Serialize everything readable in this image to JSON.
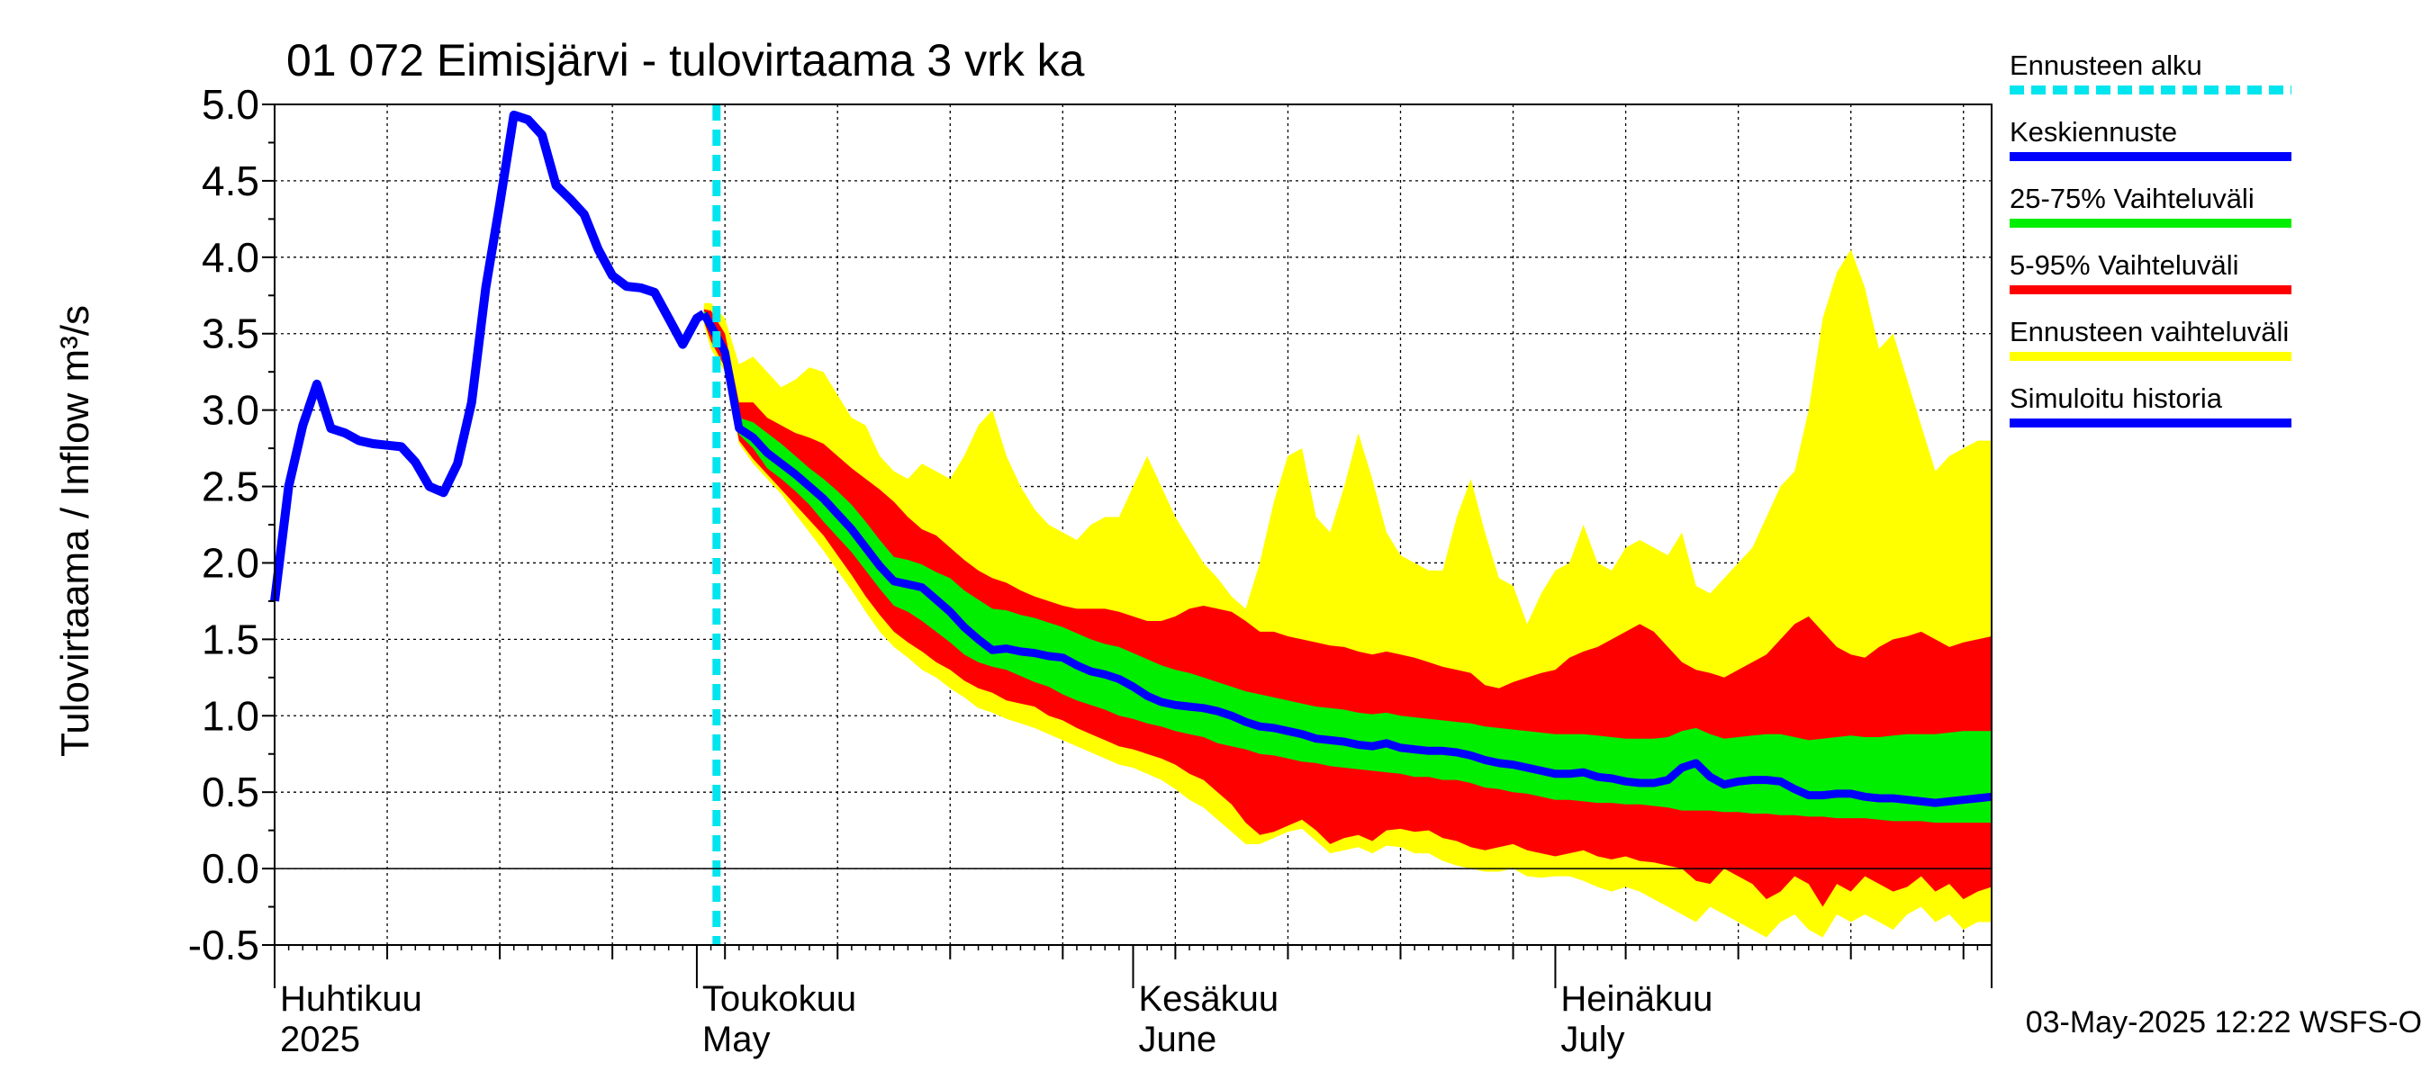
{
  "chart_data": {
    "type": "area",
    "title": "01 072 Eimisjärvi - tulovirtaama 3 vrk ka",
    "ylabel": "Tulovirtaama / Inflow    m³/s",
    "ylim": [
      -0.5,
      5.0
    ],
    "yticks": [
      "5.0",
      "4.5",
      "4.0",
      "3.5",
      "3.0",
      "2.5",
      "2.0",
      "1.5",
      "1.0",
      "0.5",
      "0.0",
      "-0.5"
    ],
    "x_range_days": [
      0,
      122
    ],
    "month_labels": [
      {
        "day": 0,
        "fi": "Huhtikuu",
        "en": "2025"
      },
      {
        "day": 30,
        "fi": "Toukokuu",
        "en": "May"
      },
      {
        "day": 61,
        "fi": "Kesäkuu",
        "en": "June"
      },
      {
        "day": 91,
        "fi": "Heinäkuu",
        "en": "July"
      }
    ],
    "forecast_start_day": 31.4,
    "footer": "03-May-2025 12:22 WSFS-O",
    "legend": [
      {
        "label": "Ennusteen alku",
        "color": "#00e5ee",
        "style": "dashed"
      },
      {
        "label": "Keskiennuste",
        "color": "#0000ff",
        "style": "solid"
      },
      {
        "label": "25-75% Vaihteluväli",
        "color": "#00ee00",
        "style": "solid"
      },
      {
        "label": "5-95% Vaihteluväli",
        "color": "#ff0000",
        "style": "solid"
      },
      {
        "label": "Ennusteen vaihteluväli",
        "color": "#ffff00",
        "style": "solid"
      },
      {
        "label": "Simuloitu historia",
        "color": "#0000ff",
        "style": "solid"
      }
    ],
    "colors": {
      "yellow": "#ffff00",
      "red": "#ff0000",
      "green": "#00ee00",
      "blue": "#0000ff",
      "cyan": "#00e5ee"
    },
    "history": [
      [
        0,
        1.75
      ],
      [
        1,
        2.5
      ],
      [
        2,
        2.9
      ],
      [
        3,
        3.17
      ],
      [
        4,
        2.88
      ],
      [
        5,
        2.85
      ],
      [
        6,
        2.8
      ],
      [
        7,
        2.78
      ],
      [
        8,
        2.77
      ],
      [
        9,
        2.76
      ],
      [
        10,
        2.66
      ],
      [
        11,
        2.5
      ],
      [
        12,
        2.46
      ],
      [
        13,
        2.65
      ],
      [
        14,
        3.05
      ],
      [
        15,
        3.8
      ],
      [
        16,
        4.35
      ],
      [
        17,
        4.93
      ],
      [
        18,
        4.9
      ],
      [
        19,
        4.8
      ],
      [
        20,
        4.47
      ],
      [
        21,
        4.38
      ],
      [
        22,
        4.28
      ],
      [
        23,
        4.05
      ],
      [
        24,
        3.88
      ],
      [
        25,
        3.81
      ],
      [
        26,
        3.8
      ],
      [
        27,
        3.77
      ],
      [
        28,
        3.6
      ],
      [
        29,
        3.43
      ],
      [
        30,
        3.6
      ],
      [
        30.5,
        3.63
      ]
    ],
    "forecast_days": [
      30.5,
      31,
      32,
      33,
      34,
      35,
      36,
      37,
      38,
      39,
      40,
      41,
      42,
      43,
      44,
      45,
      46,
      47,
      48,
      49,
      50,
      51,
      52,
      53,
      54,
      55,
      56,
      57,
      58,
      59,
      60,
      61,
      62,
      63,
      64,
      65,
      66,
      67,
      68,
      69,
      70,
      71,
      72,
      73,
      74,
      75,
      76,
      77,
      78,
      79,
      80,
      81,
      82,
      83,
      84,
      85,
      86,
      87,
      88,
      89,
      90,
      91,
      92,
      93,
      94,
      95,
      96,
      97,
      98,
      99,
      100,
      101,
      102,
      103,
      104,
      105,
      106,
      107,
      108,
      109,
      110,
      111,
      112,
      113,
      114,
      115,
      116,
      117,
      118,
      119,
      120,
      121,
      122
    ],
    "forecast_mean": [
      3.63,
      3.55,
      3.38,
      2.88,
      2.82,
      2.72,
      2.65,
      2.58,
      2.5,
      2.42,
      2.32,
      2.22,
      2.1,
      1.98,
      1.88,
      1.86,
      1.84,
      1.76,
      1.68,
      1.58,
      1.5,
      1.43,
      1.44,
      1.42,
      1.41,
      1.39,
      1.38,
      1.33,
      1.29,
      1.27,
      1.24,
      1.19,
      1.13,
      1.09,
      1.07,
      1.06,
      1.05,
      1.03,
      1.0,
      0.96,
      0.93,
      0.92,
      0.9,
      0.88,
      0.85,
      0.84,
      0.83,
      0.81,
      0.8,
      0.82,
      0.79,
      0.78,
      0.77,
      0.77,
      0.76,
      0.74,
      0.71,
      0.69,
      0.68,
      0.66,
      0.64,
      0.62,
      0.62,
      0.63,
      0.6,
      0.59,
      0.57,
      0.56,
      0.56,
      0.58,
      0.66,
      0.69,
      0.6,
      0.55,
      0.57,
      0.58,
      0.58,
      0.57,
      0.52,
      0.48,
      0.48,
      0.49,
      0.49,
      0.47,
      0.46,
      0.46,
      0.45,
      0.44,
      0.43,
      0.44,
      0.45,
      0.46,
      0.47
    ],
    "p25": [
      3.6,
      3.5,
      3.33,
      2.84,
      2.75,
      2.62,
      2.55,
      2.47,
      2.38,
      2.27,
      2.17,
      2.07,
      1.95,
      1.83,
      1.72,
      1.68,
      1.62,
      1.55,
      1.48,
      1.4,
      1.35,
      1.32,
      1.3,
      1.26,
      1.22,
      1.19,
      1.14,
      1.1,
      1.07,
      1.04,
      1.0,
      0.98,
      0.95,
      0.93,
      0.9,
      0.88,
      0.86,
      0.82,
      0.8,
      0.78,
      0.75,
      0.74,
      0.72,
      0.7,
      0.69,
      0.67,
      0.66,
      0.65,
      0.64,
      0.63,
      0.62,
      0.6,
      0.6,
      0.58,
      0.58,
      0.56,
      0.53,
      0.52,
      0.5,
      0.49,
      0.47,
      0.45,
      0.45,
      0.44,
      0.43,
      0.43,
      0.42,
      0.42,
      0.41,
      0.4,
      0.38,
      0.38,
      0.38,
      0.37,
      0.37,
      0.36,
      0.36,
      0.35,
      0.35,
      0.34,
      0.34,
      0.33,
      0.33,
      0.33,
      0.32,
      0.31,
      0.31,
      0.31,
      0.3,
      0.3,
      0.3,
      0.3,
      0.3
    ],
    "p75": [
      3.65,
      3.6,
      3.43,
      2.95,
      2.92,
      2.85,
      2.78,
      2.7,
      2.62,
      2.55,
      2.47,
      2.38,
      2.27,
      2.15,
      2.04,
      2.02,
      1.99,
      1.94,
      1.9,
      1.82,
      1.76,
      1.7,
      1.69,
      1.66,
      1.64,
      1.61,
      1.58,
      1.54,
      1.5,
      1.47,
      1.45,
      1.41,
      1.37,
      1.33,
      1.3,
      1.28,
      1.25,
      1.22,
      1.19,
      1.16,
      1.14,
      1.12,
      1.1,
      1.08,
      1.06,
      1.05,
      1.04,
      1.02,
      1.01,
      1.02,
      1.0,
      0.99,
      0.98,
      0.97,
      0.96,
      0.95,
      0.93,
      0.92,
      0.91,
      0.9,
      0.89,
      0.88,
      0.88,
      0.88,
      0.87,
      0.86,
      0.85,
      0.85,
      0.85,
      0.86,
      0.9,
      0.92,
      0.88,
      0.85,
      0.86,
      0.87,
      0.88,
      0.88,
      0.86,
      0.84,
      0.85,
      0.86,
      0.87,
      0.86,
      0.86,
      0.87,
      0.88,
      0.88,
      0.88,
      0.89,
      0.9,
      0.9,
      0.9
    ],
    "p5": [
      3.58,
      3.45,
      3.28,
      2.8,
      2.68,
      2.58,
      2.48,
      2.38,
      2.28,
      2.18,
      2.05,
      1.92,
      1.78,
      1.66,
      1.55,
      1.48,
      1.42,
      1.35,
      1.3,
      1.23,
      1.18,
      1.15,
      1.1,
      1.08,
      1.06,
      1.0,
      0.97,
      0.92,
      0.88,
      0.84,
      0.8,
      0.78,
      0.75,
      0.72,
      0.68,
      0.62,
      0.58,
      0.5,
      0.42,
      0.3,
      0.22,
      0.24,
      0.28,
      0.32,
      0.25,
      0.16,
      0.2,
      0.22,
      0.18,
      0.25,
      0.26,
      0.24,
      0.25,
      0.2,
      0.18,
      0.14,
      0.12,
      0.14,
      0.16,
      0.12,
      0.1,
      0.08,
      0.1,
      0.12,
      0.08,
      0.06,
      0.08,
      0.05,
      0.04,
      0.02,
      0.0,
      -0.08,
      -0.1,
      0.0,
      -0.05,
      -0.1,
      -0.2,
      -0.15,
      -0.05,
      -0.1,
      -0.25,
      -0.1,
      -0.15,
      -0.05,
      -0.1,
      -0.15,
      -0.12,
      -0.05,
      -0.15,
      -0.1,
      -0.2,
      -0.15,
      -0.12
    ],
    "p95": [
      3.66,
      3.65,
      3.5,
      3.05,
      3.05,
      2.95,
      2.9,
      2.85,
      2.82,
      2.78,
      2.7,
      2.62,
      2.55,
      2.48,
      2.4,
      2.3,
      2.22,
      2.18,
      2.1,
      2.02,
      1.95,
      1.9,
      1.87,
      1.82,
      1.78,
      1.75,
      1.72,
      1.7,
      1.7,
      1.7,
      1.68,
      1.65,
      1.62,
      1.62,
      1.65,
      1.7,
      1.72,
      1.7,
      1.68,
      1.62,
      1.55,
      1.55,
      1.52,
      1.5,
      1.48,
      1.46,
      1.45,
      1.42,
      1.4,
      1.42,
      1.4,
      1.38,
      1.35,
      1.32,
      1.3,
      1.28,
      1.2,
      1.18,
      1.22,
      1.25,
      1.28,
      1.3,
      1.38,
      1.42,
      1.45,
      1.5,
      1.55,
      1.6,
      1.55,
      1.45,
      1.35,
      1.3,
      1.28,
      1.25,
      1.3,
      1.35,
      1.4,
      1.5,
      1.6,
      1.65,
      1.55,
      1.45,
      1.4,
      1.38,
      1.45,
      1.5,
      1.52,
      1.55,
      1.5,
      1.45,
      1.48,
      1.5,
      1.52
    ],
    "pmin": [
      3.56,
      3.4,
      3.25,
      2.78,
      2.65,
      2.55,
      2.45,
      2.32,
      2.2,
      2.08,
      1.95,
      1.82,
      1.68,
      1.55,
      1.45,
      1.38,
      1.3,
      1.25,
      1.18,
      1.12,
      1.05,
      1.02,
      0.98,
      0.95,
      0.92,
      0.88,
      0.84,
      0.8,
      0.76,
      0.72,
      0.68,
      0.66,
      0.62,
      0.58,
      0.52,
      0.45,
      0.4,
      0.32,
      0.24,
      0.16,
      0.16,
      0.2,
      0.24,
      0.26,
      0.18,
      0.1,
      0.12,
      0.14,
      0.1,
      0.15,
      0.14,
      0.1,
      0.1,
      0.05,
      0.02,
      0.0,
      -0.02,
      -0.02,
      0.0,
      -0.05,
      -0.06,
      -0.05,
      -0.05,
      -0.08,
      -0.12,
      -0.15,
      -0.12,
      -0.15,
      -0.2,
      -0.25,
      -0.3,
      -0.35,
      -0.25,
      -0.3,
      -0.35,
      -0.4,
      -0.45,
      -0.35,
      -0.3,
      -0.4,
      -0.45,
      -0.3,
      -0.35,
      -0.3,
      -0.35,
      -0.4,
      -0.3,
      -0.25,
      -0.35,
      -0.3,
      -0.4,
      -0.35,
      -0.35
    ],
    "pmax": [
      3.7,
      3.7,
      3.6,
      3.3,
      3.35,
      3.25,
      3.15,
      3.2,
      3.28,
      3.25,
      3.1,
      2.95,
      2.9,
      2.7,
      2.6,
      2.55,
      2.65,
      2.6,
      2.55,
      2.7,
      2.9,
      3.0,
      2.7,
      2.5,
      2.35,
      2.25,
      2.2,
      2.15,
      2.25,
      2.3,
      2.3,
      2.5,
      2.7,
      2.5,
      2.3,
      2.15,
      2.0,
      1.9,
      1.78,
      1.7,
      2.0,
      2.4,
      2.7,
      2.75,
      2.3,
      2.2,
      2.5,
      2.85,
      2.55,
      2.2,
      2.05,
      2.0,
      1.95,
      1.95,
      2.3,
      2.55,
      2.2,
      1.9,
      1.85,
      1.6,
      1.8,
      1.95,
      2.0,
      2.25,
      2.0,
      1.95,
      2.1,
      2.15,
      2.1,
      2.05,
      2.2,
      1.85,
      1.8,
      1.9,
      2.0,
      2.1,
      2.3,
      2.5,
      2.6,
      3.0,
      3.6,
      3.9,
      4.05,
      3.8,
      3.4,
      3.5,
      3.2,
      2.9,
      2.6,
      2.7,
      2.75,
      2.8,
      2.8
    ]
  }
}
